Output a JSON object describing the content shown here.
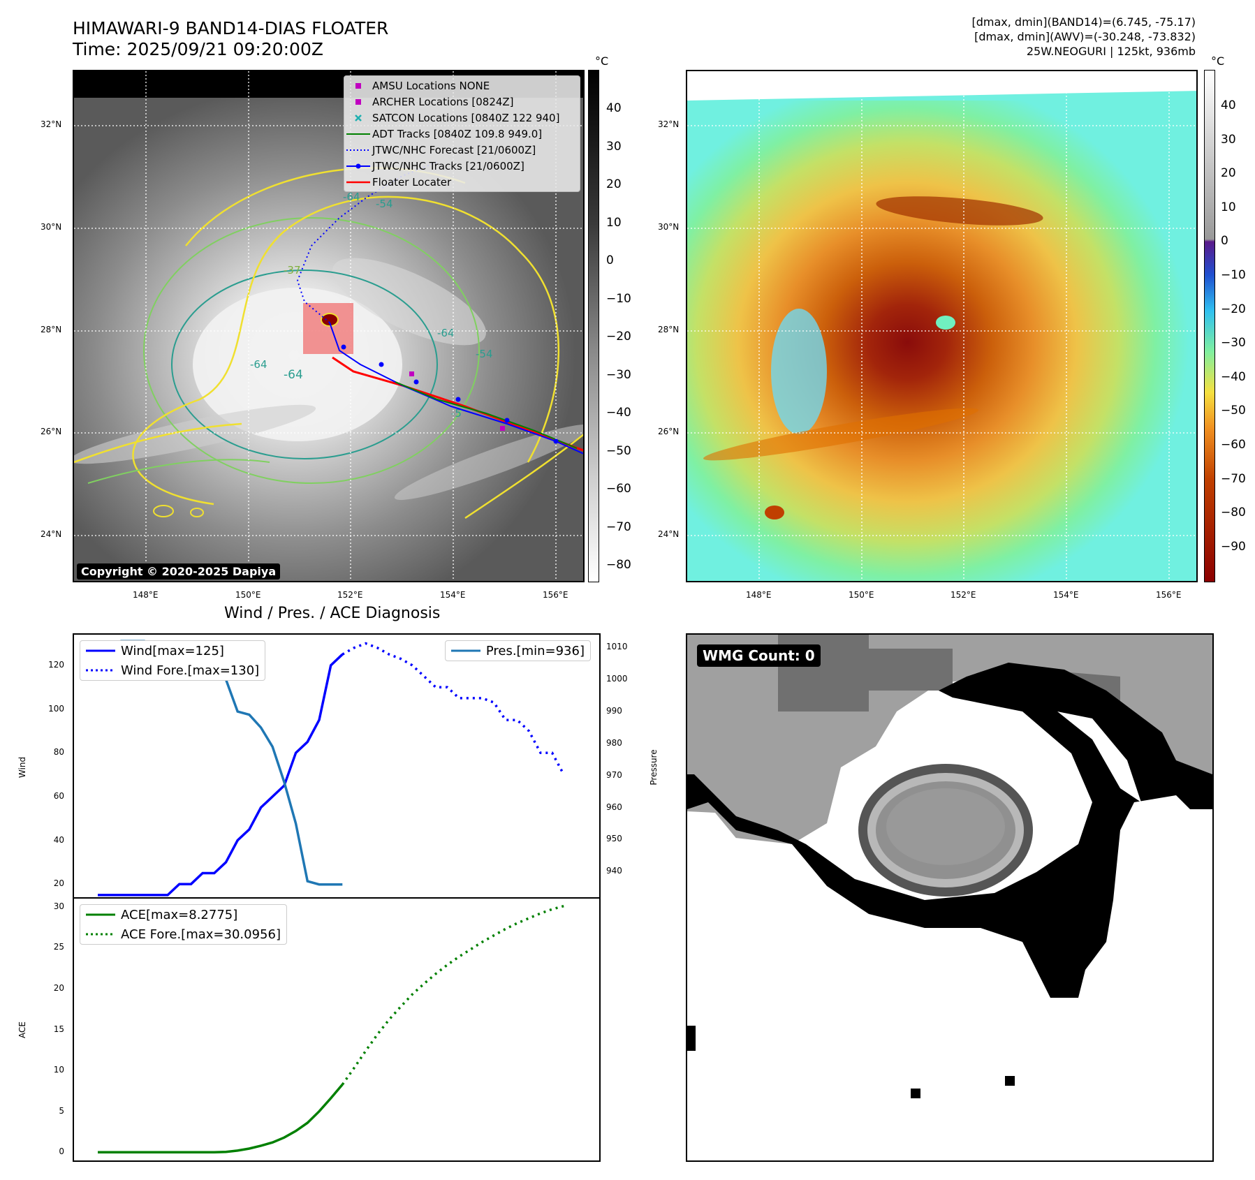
{
  "header": {
    "title_line1": "HIMAWARI-9 BAND14-DIAS FLOATER",
    "title_line2": "Time: 2025/09/21 09:20:00Z",
    "info_line1": "[dmax, dmin](BAND14)=(6.745, -75.17)",
    "info_line2": "[dmax, dmin](AWV)=(-30.248, -73.832)",
    "info_line3": "25W.NEOGURI | 125kt, 936mb"
  },
  "map": {
    "lat_ticks": [
      "32°N",
      "30°N",
      "28°N",
      "26°N",
      "24°N"
    ],
    "lon_ticks": [
      "148°E",
      "150°E",
      "152°E",
      "154°E",
      "156°E"
    ],
    "copyright": "Copyright © 2020-2025 Dapiya",
    "contour_labels": [
      "-64",
      "-54",
      "-37",
      "-64",
      "-64",
      "-54",
      "-64",
      "-5"
    ],
    "legend": [
      {
        "label": "AMSU Locations NONE",
        "color": "#c000c0",
        "marker": "square"
      },
      {
        "label": "ARCHER Locations [0824Z]",
        "color": "#c000c0",
        "marker": "square"
      },
      {
        "label": "SATCON Locations [0840Z 122 940]",
        "color": "#20b0b0",
        "marker": "x"
      },
      {
        "label": "ADT Tracks [0840Z 109.8 949.0]",
        "color": "#008000",
        "marker": "line"
      },
      {
        "label": "JTWC/NHC Forecast [21/0600Z]",
        "color": "#0000ff",
        "marker": "dotted"
      },
      {
        "label": "JTWC/NHC Tracks [21/0600Z]",
        "color": "#0000ff",
        "marker": "line-dot"
      },
      {
        "label": "Floater Locater",
        "color": "#ff0000",
        "marker": "line"
      }
    ]
  },
  "colorbar_left": {
    "unit": "°C",
    "ticks": [
      "40",
      "30",
      "20",
      "10",
      "0",
      "−10",
      "−20",
      "−30",
      "−40",
      "−50",
      "−60",
      "−70",
      "−80"
    ]
  },
  "colorbar_right": {
    "unit": "°C",
    "ticks": [
      "40",
      "30",
      "20",
      "10",
      "0",
      "−10",
      "−20",
      "−30",
      "−40",
      "−50",
      "−60",
      "−70",
      "−80",
      "−90"
    ]
  },
  "diagnosis": {
    "title": "Wind / Pres. / ACE Diagnosis",
    "wind_ylabel": "Wind",
    "pres_ylabel": "Pressure",
    "ace_ylabel": "ACE",
    "legend_wind": "Wind[max=125]",
    "legend_wind_fore": "Wind Fore.[max=130]",
    "legend_pres": "Pres.[min=936]",
    "legend_ace": "ACE[max=8.2775]",
    "legend_ace_fore": "ACE Fore.[max=30.0956]"
  },
  "wmg": {
    "label": "WMG Count: 0"
  },
  "chart_data": [
    {
      "type": "line",
      "title": "Wind / Pres. / ACE Diagnosis",
      "ylabel": "Wind",
      "ylim": [
        14,
        134
      ],
      "yticks": [
        20,
        40,
        60,
        80,
        100,
        120
      ],
      "series": [
        {
          "name": "Wind[max=125]",
          "color": "#0000ff",
          "style": "solid",
          "x": [
            0,
            1,
            2,
            3,
            4,
            5,
            6,
            7,
            8,
            9,
            10,
            11,
            12,
            13,
            14,
            15,
            16,
            17,
            18,
            19,
            20,
            21
          ],
          "y": [
            15,
            15,
            15,
            15,
            15,
            15,
            15,
            20,
            20,
            25,
            25,
            30,
            40,
            45,
            55,
            60,
            65,
            80,
            85,
            95,
            120,
            125
          ]
        },
        {
          "name": "Wind Fore.[max=130]",
          "color": "#0000ff",
          "style": "dotted",
          "x": [
            21,
            22,
            23,
            24,
            25,
            26,
            27,
            28,
            29,
            30,
            31,
            32,
            33,
            34,
            35,
            36,
            37,
            38,
            39,
            40
          ],
          "y": [
            125,
            128,
            130,
            128,
            125,
            123,
            120,
            115,
            110,
            110,
            105,
            105,
            105,
            103,
            95,
            95,
            90,
            80,
            80,
            70
          ]
        }
      ]
    },
    {
      "type": "line",
      "ylabel": "Pressure",
      "ylim": [
        932,
        1014
      ],
      "yticks": [
        940,
        950,
        960,
        970,
        980,
        990,
        1000,
        1010
      ],
      "series": [
        {
          "name": "Pres.[min=936]",
          "color": "#1f77b4",
          "style": "solid",
          "x": [
            0,
            1,
            2,
            3,
            4,
            5,
            6,
            7,
            8,
            9,
            10,
            11,
            12,
            13,
            14,
            15,
            16,
            17,
            18,
            19,
            20,
            21
          ],
          "y": [
            1008,
            1008,
            1012,
            1012,
            1012,
            1010,
            1008,
            1008,
            1008,
            1006,
            1004,
            1000,
            990,
            989,
            985,
            979,
            968,
            955,
            937,
            936,
            936,
            936
          ]
        }
      ]
    },
    {
      "type": "line",
      "ylabel": "ACE",
      "ylim": [
        -1,
        31
      ],
      "yticks": [
        0,
        5,
        10,
        15,
        20,
        25,
        30
      ],
      "series": [
        {
          "name": "ACE[max=8.2775]",
          "color": "#008000",
          "style": "solid",
          "x": [
            0,
            1,
            2,
            3,
            4,
            5,
            6,
            7,
            8,
            9,
            10,
            11,
            12,
            13,
            14,
            15,
            16,
            17,
            18,
            19,
            20,
            21
          ],
          "y": [
            0,
            0,
            0,
            0,
            0,
            0,
            0,
            0,
            0,
            0,
            0,
            0.05,
            0.2,
            0.45,
            0.8,
            1.2,
            1.8,
            2.6,
            3.6,
            5.0,
            6.6,
            8.2775
          ]
        },
        {
          "name": "ACE Fore.[max=30.0956]",
          "color": "#008000",
          "style": "dotted",
          "x": [
            21,
            22,
            23,
            24,
            25,
            26,
            27,
            28,
            29,
            30,
            31,
            32,
            33,
            34,
            35,
            36,
            37,
            38,
            39,
            40
          ],
          "y": [
            8.2775,
            10.3,
            12.4,
            14.4,
            16.2,
            17.8,
            19.3,
            20.6,
            21.8,
            22.9,
            23.9,
            24.8,
            25.7,
            26.5,
            27.3,
            28.0,
            28.6,
            29.2,
            29.7,
            30.0956
          ]
        }
      ]
    }
  ]
}
